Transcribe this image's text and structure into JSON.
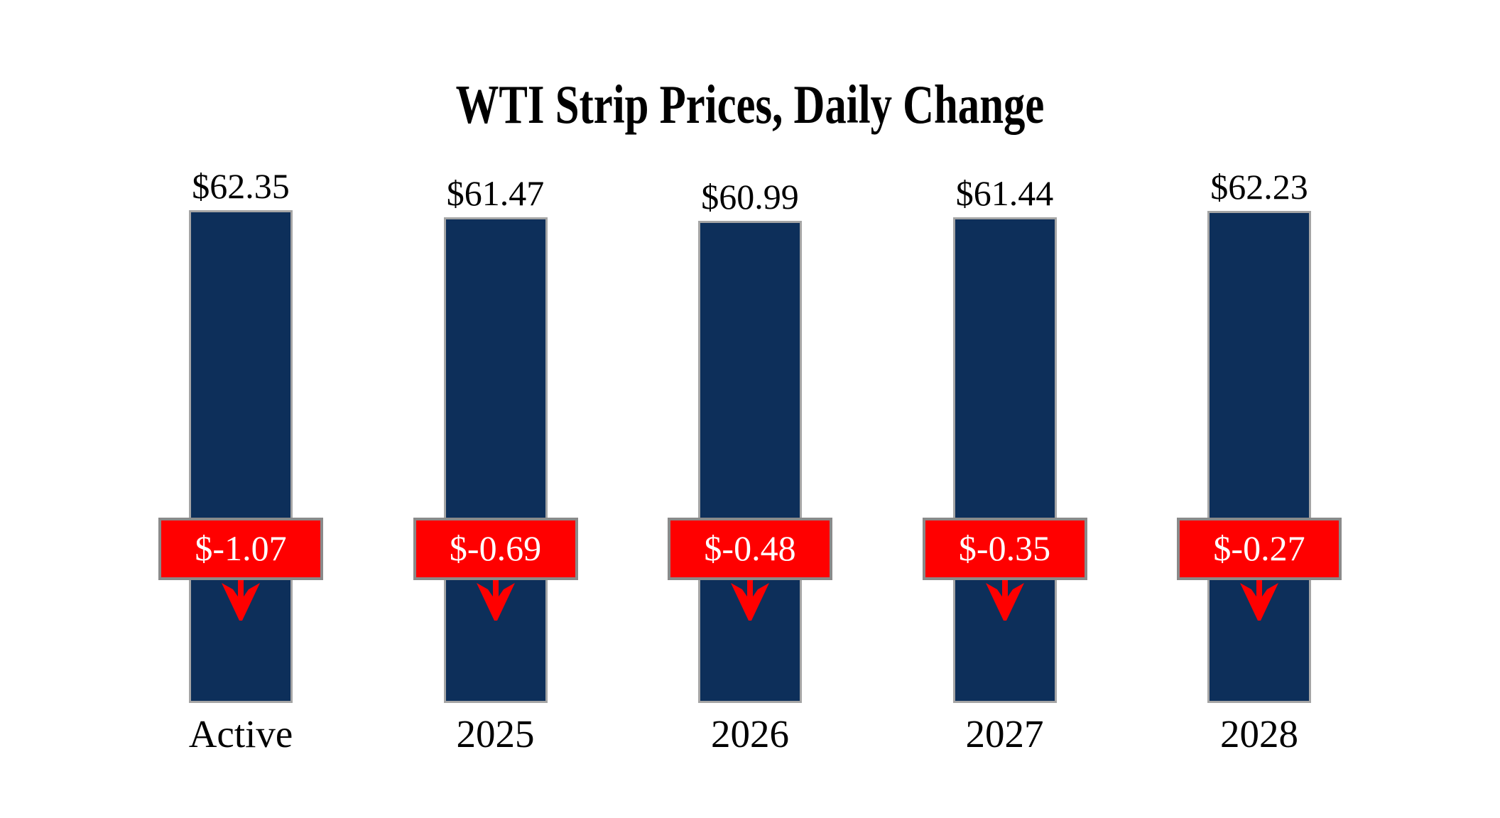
{
  "title": "WTI Strip Prices, Daily Change",
  "colors": {
    "bar_fill_navy": "#0D2F5A",
    "bar_border_gray": "#A5A5A5",
    "change_box_red": "#FF0000",
    "change_box_border_gray": "#8A8A8A",
    "change_text_white": "#FFFFFF",
    "label_text_black": "#000000",
    "background_white": "#FFFFFF",
    "arrow_red": "#FF0000"
  },
  "chart_data": {
    "type": "bar",
    "title": "WTI Strip Prices, Daily Change",
    "categories": [
      "Active",
      "2025",
      "2026",
      "2027",
      "2028"
    ],
    "series": [
      {
        "name": "WTI Strip Price",
        "values": [
          62.35,
          61.47,
          60.99,
          61.44,
          62.23
        ]
      },
      {
        "name": "Daily Change",
        "values": [
          -1.07,
          -0.69,
          -0.48,
          -0.35,
          -0.27
        ]
      }
    ],
    "labels": {
      "prices": [
        "$62.35",
        "$61.47",
        "$60.99",
        "$61.44",
        "$62.23"
      ],
      "changes": [
        "$-1.07",
        "$-0.69",
        "$-0.48",
        "$-0.35",
        "$-0.27"
      ]
    },
    "xlabel": "",
    "ylabel": "",
    "ylim": [
      0,
      62.35
    ],
    "grid": false,
    "legend_position": "none",
    "annotation_note": "Each bar shows strip price; red badge with down arrow shows negative daily change"
  }
}
